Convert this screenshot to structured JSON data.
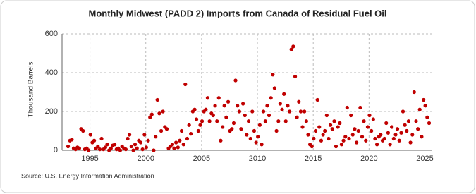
{
  "chart_data": {
    "type": "scatter",
    "title": "Monthly Midwest (PADD 2) Imports from Canada of Residual Fuel Oil",
    "y_label": "Thousand Barrels",
    "source": "Source: U.S. Energy Information Administration",
    "color": "#c00000",
    "grid": true,
    "xlim": [
      1992.5,
      2025.6
    ],
    "ylim": [
      0,
      600
    ],
    "xticks": [
      1995,
      2000,
      2005,
      2010,
      2015,
      2020,
      2025
    ],
    "yticks": [
      0,
      200,
      400,
      600
    ],
    "x": [
      1993.04,
      1993.21,
      1993.38,
      1993.54,
      1993.71,
      1993.88,
      1994.04,
      1994.21,
      1994.38,
      1994.54,
      1994.71,
      1994.88,
      1995.04,
      1995.21,
      1995.38,
      1995.54,
      1995.71,
      1995.88,
      1996.04,
      1996.21,
      1996.38,
      1996.54,
      1996.71,
      1996.88,
      1997.04,
      1997.21,
      1997.38,
      1997.54,
      1997.71,
      1997.88,
      1998.04,
      1998.21,
      1998.38,
      1998.54,
      1998.71,
      1998.88,
      1999.04,
      1999.21,
      1999.38,
      1999.54,
      1999.71,
      1999.88,
      2000.04,
      2000.21,
      2000.38,
      2000.54,
      2000.71,
      2000.88,
      2001.04,
      2001.21,
      2001.38,
      2001.54,
      2001.71,
      2001.88,
      2002.04,
      2002.21,
      2002.38,
      2002.54,
      2002.71,
      2002.88,
      2003.04,
      2003.21,
      2003.38,
      2003.54,
      2003.71,
      2003.88,
      2004.04,
      2004.21,
      2004.38,
      2004.54,
      2004.71,
      2004.88,
      2005.04,
      2005.21,
      2005.38,
      2005.54,
      2005.71,
      2005.88,
      2006.04,
      2006.21,
      2006.38,
      2006.54,
      2006.71,
      2006.88,
      2007.04,
      2007.21,
      2007.38,
      2007.54,
      2007.71,
      2007.88,
      2008.04,
      2008.21,
      2008.38,
      2008.54,
      2008.71,
      2008.88,
      2009.04,
      2009.21,
      2009.38,
      2009.54,
      2009.71,
      2009.88,
      2010.04,
      2010.21,
      2010.38,
      2010.54,
      2010.71,
      2010.88,
      2011.04,
      2011.21,
      2011.38,
      2011.54,
      2011.71,
      2011.88,
      2012.04,
      2012.21,
      2012.38,
      2012.54,
      2012.71,
      2012.88,
      2013.04,
      2013.21,
      2013.38,
      2013.54,
      2013.71,
      2013.88,
      2014.04,
      2014.21,
      2014.38,
      2014.54,
      2014.71,
      2014.88,
      2015.04,
      2015.21,
      2015.38,
      2015.54,
      2015.71,
      2015.88,
      2016.04,
      2016.21,
      2016.38,
      2016.54,
      2016.71,
      2016.88,
      2017.04,
      2017.21,
      2017.38,
      2017.54,
      2017.71,
      2017.88,
      2018.04,
      2018.21,
      2018.38,
      2018.54,
      2018.71,
      2018.88,
      2019.04,
      2019.21,
      2019.38,
      2019.54,
      2019.71,
      2019.88,
      2020.04,
      2020.21,
      2020.38,
      2020.54,
      2020.71,
      2020.88,
      2021.04,
      2021.21,
      2021.38,
      2021.54,
      2021.71,
      2021.88,
      2022.04,
      2022.21,
      2022.38,
      2022.54,
      2022.71,
      2022.88,
      2023.04,
      2023.21,
      2023.38,
      2023.54,
      2023.71,
      2023.88,
      2024.04,
      2024.21,
      2024.38,
      2024.54,
      2024.71,
      2024.88,
      2025.04,
      2025.21,
      2025.38
    ],
    "values": [
      20,
      50,
      55,
      10,
      5,
      15,
      10,
      110,
      100,
      5,
      10,
      0,
      80,
      40,
      50,
      10,
      20,
      5,
      60,
      5,
      15,
      30,
      0,
      10,
      25,
      30,
      5,
      10,
      0,
      20,
      10,
      5,
      60,
      80,
      20,
      0,
      30,
      10,
      50,
      40,
      5,
      80,
      15,
      50,
      170,
      185,
      0,
      70,
      260,
      190,
      100,
      200,
      120,
      110,
      10,
      20,
      30,
      10,
      40,
      15,
      50,
      100,
      30,
      340,
      60,
      130,
      85,
      200,
      210,
      160,
      100,
      130,
      150,
      200,
      210,
      270,
      150,
      190,
      180,
      230,
      150,
      270,
      50,
      120,
      230,
      170,
      250,
      100,
      110,
      140,
      360,
      230,
      200,
      110,
      240,
      180,
      80,
      150,
      60,
      200,
      100,
      40,
      70,
      130,
      30,
      200,
      150,
      230,
      180,
      270,
      390,
      320,
      100,
      150,
      240,
      210,
      290,
      150,
      230,
      200,
      520,
      535,
      380,
      170,
      250,
      200,
      120,
      200,
      150,
      80,
      30,
      20,
      60,
      100,
      260,
      120,
      50,
      80,
      100,
      180,
      60,
      130,
      110,
      150,
      20,
      120,
      140,
      30,
      50,
      70,
      220,
      60,
      180,
      80,
      110,
      40,
      100,
      220,
      70,
      150,
      50,
      120,
      180,
      100,
      160,
      60,
      30,
      70,
      80,
      50,
      60,
      140,
      90,
      30,
      120,
      60,
      80,
      110,
      50,
      90,
      200,
      130,
      100,
      150,
      40,
      80,
      300,
      150,
      110,
      210,
      70,
      260,
      230,
      170,
      140
    ]
  }
}
